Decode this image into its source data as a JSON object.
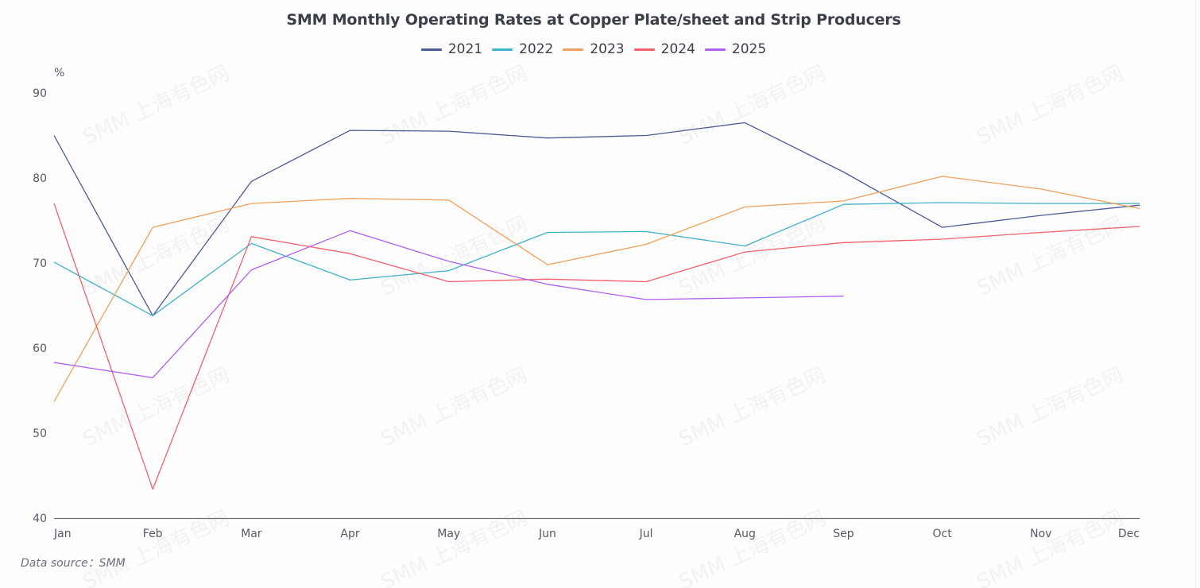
{
  "chart_data": {
    "type": "line",
    "title": "SMM Monthly Operating Rates at Copper Plate/sheet and Strip Producers",
    "ylabel": "%",
    "xlabel": "",
    "ylim": [
      40,
      90
    ],
    "yticks": [
      "40",
      "50",
      "60",
      "70",
      "80",
      "90"
    ],
    "grid": false,
    "legend_position": "top-center",
    "categories": [
      "Jan",
      "Feb",
      "Mar",
      "Apr",
      "May",
      "Jun",
      "Jul",
      "Aug",
      "Sep",
      "Oct",
      "Nov",
      "Dec"
    ],
    "series": [
      {
        "name": "2021",
        "color": "#4e5a95",
        "values": [
          85.0,
          63.8,
          79.6,
          85.6,
          85.5,
          84.7,
          85.0,
          86.5,
          80.7,
          74.2,
          75.6,
          76.8
        ]
      },
      {
        "name": "2022",
        "color": "#3fb1c9",
        "values": [
          70.1,
          63.8,
          72.3,
          68.0,
          69.1,
          73.6,
          73.7,
          72.0,
          76.9,
          77.1,
          77.0,
          77.0
        ]
      },
      {
        "name": "2023",
        "color": "#f0a05a",
        "values": [
          53.7,
          74.2,
          77.0,
          77.6,
          77.4,
          69.8,
          72.2,
          76.6,
          77.3,
          80.2,
          78.7,
          76.4
        ]
      },
      {
        "name": "2024",
        "color": "#f5606b",
        "values": [
          77.0,
          43.4,
          73.1,
          71.1,
          67.8,
          68.1,
          67.8,
          71.3,
          72.4,
          72.8,
          73.6,
          74.3
        ]
      },
      {
        "name": "2025",
        "color": "#b060f0",
        "values": [
          58.3,
          56.5,
          69.2,
          73.8,
          70.2,
          67.5,
          65.7,
          65.9,
          66.1,
          null,
          null,
          null
        ]
      }
    ],
    "source": "Data source：SMM"
  },
  "watermark": "SMM 上海有色网"
}
